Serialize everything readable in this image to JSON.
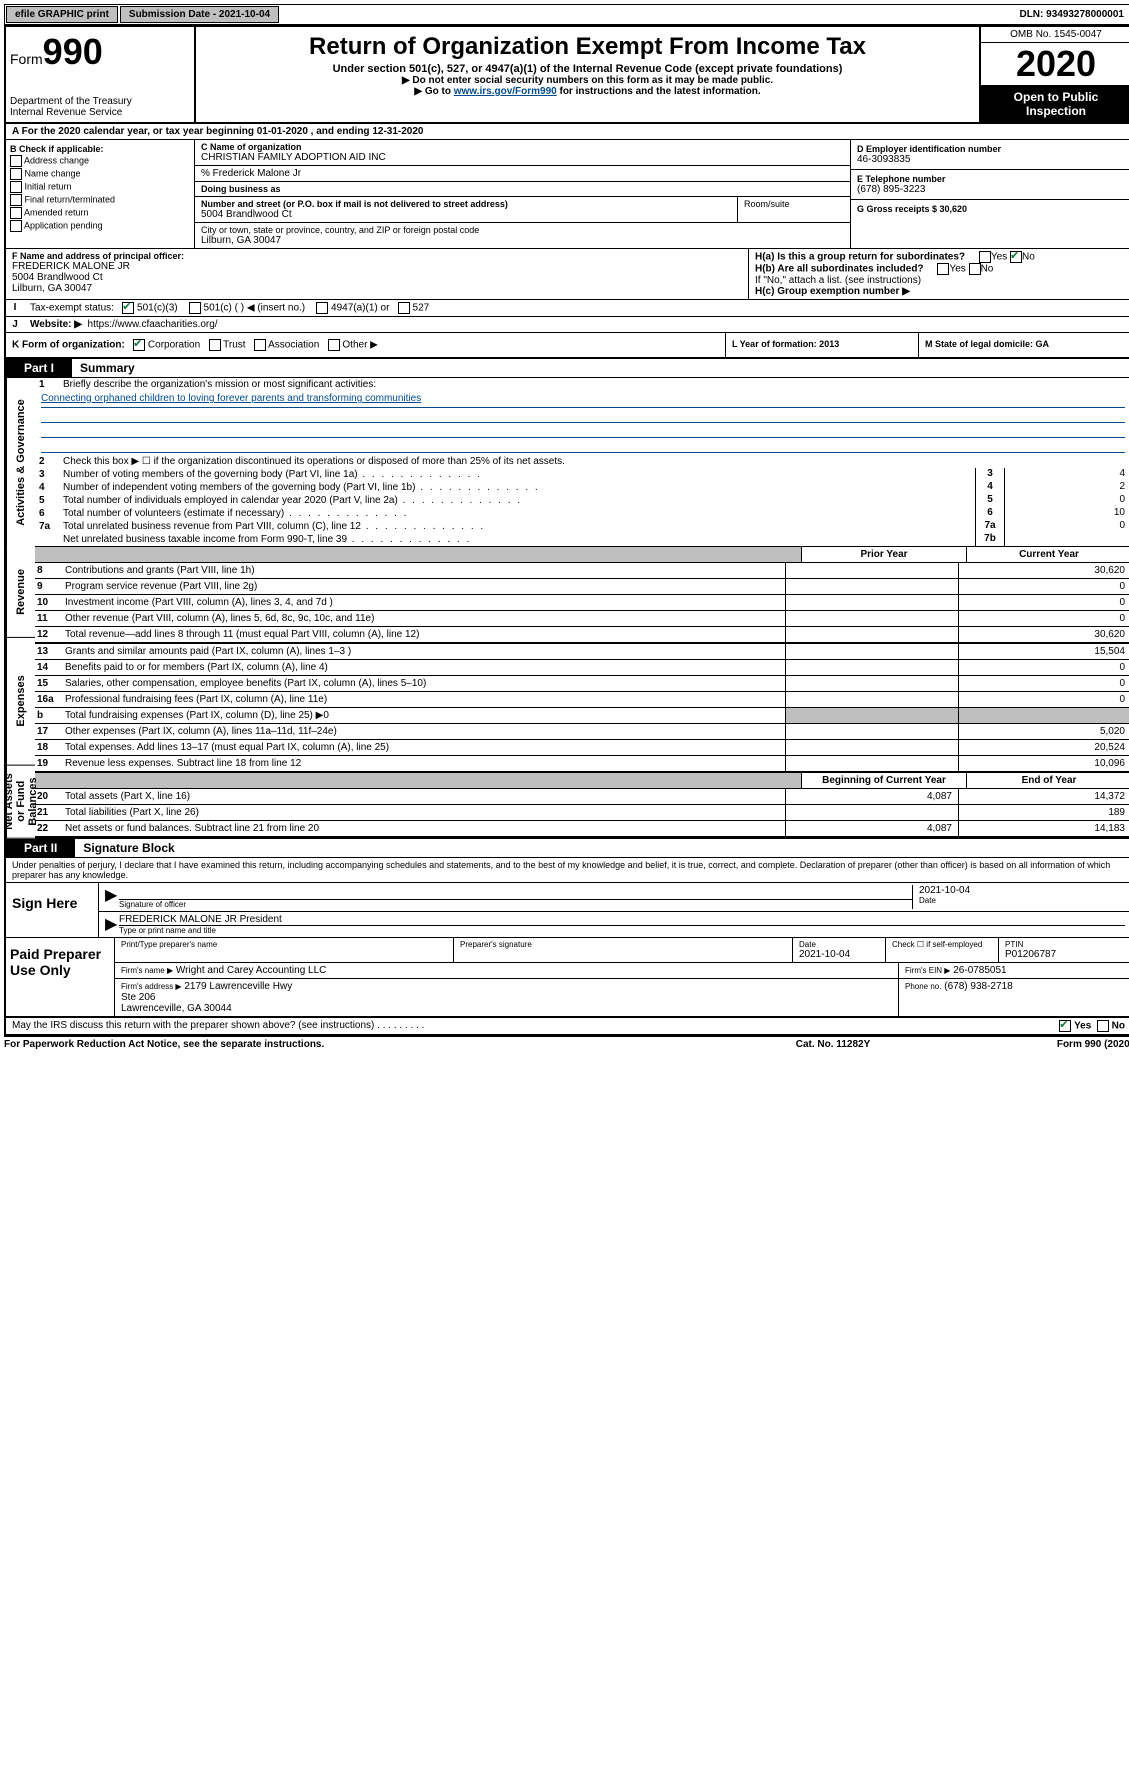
{
  "topbar": {
    "efile": "efile GRAPHIC print",
    "submission": "Submission Date - 2021-10-04",
    "dln": "DLN: 93493278000001"
  },
  "header": {
    "form_label": "Form",
    "form_num": "990",
    "title": "Return of Organization Exempt From Income Tax",
    "subtitle": "Under section 501(c), 527, or 4947(a)(1) of the Internal Revenue Code (except private foundations)",
    "note1": "▶ Do not enter social security numbers on this form as it may be made public.",
    "note2_pre": "▶ Go to ",
    "note2_link": "www.irs.gov/Form990",
    "note2_post": " for instructions and the latest information.",
    "dept": "Department of the Treasury\nInternal Revenue Service",
    "omb": "OMB No. 1545-0047",
    "year": "2020",
    "open1": "Open to Public",
    "open2": "Inspection"
  },
  "row_a": "A For the 2020 calendar year, or tax year beginning 01-01-2020    , and ending 12-31-2020",
  "box_b": {
    "title": "B Check if applicable:",
    "opts": [
      "Address change",
      "Name change",
      "Initial return",
      "Final return/terminated",
      "Amended return",
      "Application pending"
    ]
  },
  "box_c": {
    "name_lbl": "C Name of organization",
    "name": "CHRISTIAN FAMILY ADOPTION AID INC",
    "care_lbl": "% Frederick Malone Jr",
    "dba_lbl": "Doing business as",
    "addr_lbl": "Number and street (or P.O. box if mail is not delivered to street address)",
    "addr": "5004 Brandlwood Ct",
    "room_lbl": "Room/suite",
    "city_lbl": "City or town, state or province, country, and ZIP or foreign postal code",
    "city": "Lilburn, GA  30047"
  },
  "box_d": {
    "lbl": "D Employer identification number",
    "val": "46-3093835"
  },
  "box_e": {
    "lbl": "E Telephone number",
    "val": "(678) 895-3223"
  },
  "box_g": {
    "lbl": "G Gross receipts $ 30,620"
  },
  "box_f": {
    "lbl": "F  Name and address of principal officer:",
    "name": "FREDERICK MALONE JR",
    "addr1": "5004 Brandlwood Ct",
    "addr2": "Lilburn, GA  30047"
  },
  "box_h": {
    "ha": "H(a)  Is this a group return for subordinates?",
    "hb": "H(b)  Are all subordinates included?",
    "hb_note": "If \"No,\" attach a list. (see instructions)",
    "hc": "H(c)  Group exemption number ▶",
    "yes": "Yes",
    "no": "No"
  },
  "row_i": {
    "lbl": "I",
    "text": "Tax-exempt status:",
    "opts": [
      "501(c)(3)",
      "501(c) (  ) ◀ (insert no.)",
      "4947(a)(1) or",
      "527"
    ]
  },
  "row_j": {
    "lbl": "J",
    "text": "Website: ▶",
    "url": "https://www.cfaacharities.org/"
  },
  "row_k": {
    "lbl": "K Form of organization:",
    "opts": [
      "Corporation",
      "Trust",
      "Association",
      "Other ▶"
    ],
    "l_lbl": "L Year of formation: 2013",
    "m_lbl": "M State of legal domicile: GA"
  },
  "part1": {
    "tab": "Part I",
    "title": "Summary"
  },
  "vert_labels": {
    "gov": "Activities & Governance",
    "rev": "Revenue",
    "exp": "Expenses",
    "net": "Net Assets or Fund Balances"
  },
  "summary": {
    "line1": "Briefly describe the organization's mission or most significant activities:",
    "mission": "Connecting orphaned children to loving forever parents and transforming communities",
    "line2": "Check this box ▶ ☐  if the organization discontinued its operations or disposed of more than 25% of its net assets.",
    "lines": [
      {
        "n": "3",
        "d": "Number of voting members of the governing body (Part VI, line 1a)",
        "box": "3",
        "v": "4"
      },
      {
        "n": "4",
        "d": "Number of independent voting members of the governing body (Part VI, line 1b)",
        "box": "4",
        "v": "2"
      },
      {
        "n": "5",
        "d": "Total number of individuals employed in calendar year 2020 (Part V, line 2a)",
        "box": "5",
        "v": "0"
      },
      {
        "n": "6",
        "d": "Total number of volunteers (estimate if necessary)",
        "box": "6",
        "v": "10"
      },
      {
        "n": "7a",
        "d": "Total unrelated business revenue from Part VIII, column (C), line 12",
        "box": "7a",
        "v": "0"
      },
      {
        "n": "",
        "d": "Net unrelated business taxable income from Form 990-T, line 39",
        "box": "7b",
        "v": ""
      }
    ],
    "h_prior": "Prior Year",
    "h_current": "Current Year",
    "rev_lines": [
      {
        "n": "8",
        "d": "Contributions and grants (Part VIII, line 1h)",
        "c1": "",
        "c2": "30,620"
      },
      {
        "n": "9",
        "d": "Program service revenue (Part VIII, line 2g)",
        "c1": "",
        "c2": "0"
      },
      {
        "n": "10",
        "d": "Investment income (Part VIII, column (A), lines 3, 4, and 7d )",
        "c1": "",
        "c2": "0"
      },
      {
        "n": "11",
        "d": "Other revenue (Part VIII, column (A), lines 5, 6d, 8c, 9c, 10c, and 11e)",
        "c1": "",
        "c2": "0"
      },
      {
        "n": "12",
        "d": "Total revenue—add lines 8 through 11 (must equal Part VIII, column (A), line 12)",
        "c1": "",
        "c2": "30,620"
      }
    ],
    "exp_lines": [
      {
        "n": "13",
        "d": "Grants and similar amounts paid (Part IX, column (A), lines 1–3 )",
        "c1": "",
        "c2": "15,504"
      },
      {
        "n": "14",
        "d": "Benefits paid to or for members (Part IX, column (A), line 4)",
        "c1": "",
        "c2": "0"
      },
      {
        "n": "15",
        "d": "Salaries, other compensation, employee benefits (Part IX, column (A), lines 5–10)",
        "c1": "",
        "c2": "0"
      },
      {
        "n": "16a",
        "d": "Professional fundraising fees (Part IX, column (A), line 11e)",
        "c1": "",
        "c2": "0"
      },
      {
        "n": "b",
        "d": "Total fundraising expenses (Part IX, column (D), line 25) ▶0",
        "c1": "grey",
        "c2": "grey"
      },
      {
        "n": "17",
        "d": "Other expenses (Part IX, column (A), lines 11a–11d, 11f–24e)",
        "c1": "",
        "c2": "5,020"
      },
      {
        "n": "18",
        "d": "Total expenses. Add lines 13–17 (must equal Part IX, column (A), line 25)",
        "c1": "",
        "c2": "20,524"
      },
      {
        "n": "19",
        "d": "Revenue less expenses. Subtract line 18 from line 12",
        "c1": "",
        "c2": "10,096"
      }
    ],
    "h_begin": "Beginning of Current Year",
    "h_end": "End of Year",
    "net_lines": [
      {
        "n": "20",
        "d": "Total assets (Part X, line 16)",
        "c1": "4,087",
        "c2": "14,372"
      },
      {
        "n": "21",
        "d": "Total liabilities (Part X, line 26)",
        "c1": "",
        "c2": "189"
      },
      {
        "n": "22",
        "d": "Net assets or fund balances. Subtract line 21 from line 20",
        "c1": "4,087",
        "c2": "14,183"
      }
    ]
  },
  "part2": {
    "tab": "Part II",
    "title": "Signature Block"
  },
  "perjury": "Under penalties of perjury, I declare that I have examined this return, including accompanying schedules and statements, and to the best of my knowledge and belief, it is true, correct, and complete. Declaration of preparer (other than officer) is based on all information of which preparer has any knowledge.",
  "sign": {
    "lbl": "Sign Here",
    "sig_lbl": "Signature of officer",
    "date": "2021-10-04",
    "date_lbl": "Date",
    "name": "FREDERICK MALONE JR President",
    "name_lbl": "Type or print name and title"
  },
  "paid": {
    "lbl": "Paid Preparer Use Only",
    "h1": "Print/Type preparer's name",
    "h2": "Preparer's signature",
    "h3_lbl": "Date",
    "h3": "2021-10-04",
    "h4": "Check ☐ if self-employed",
    "h5_lbl": "PTIN",
    "h5": "P01206787",
    "firm_lbl": "Firm's name    ▶",
    "firm": "Wright and Carey Accounting LLC",
    "ein_lbl": "Firm's EIN ▶",
    "ein": "26-0785051",
    "addr_lbl": "Firm's address ▶",
    "addr": "2179 Lawrenceville Hwy\nSte 206\nLawrenceville, GA  30044",
    "phone_lbl": "Phone no.",
    "phone": "(678) 938-2718"
  },
  "footer": {
    "discuss": "May the IRS discuss this return with the preparer shown above? (see instructions)",
    "yes": "Yes",
    "no": "No",
    "pra": "For Paperwork Reduction Act Notice, see the separate instructions.",
    "cat": "Cat. No. 11282Y",
    "form": "Form 990 (2020)"
  }
}
